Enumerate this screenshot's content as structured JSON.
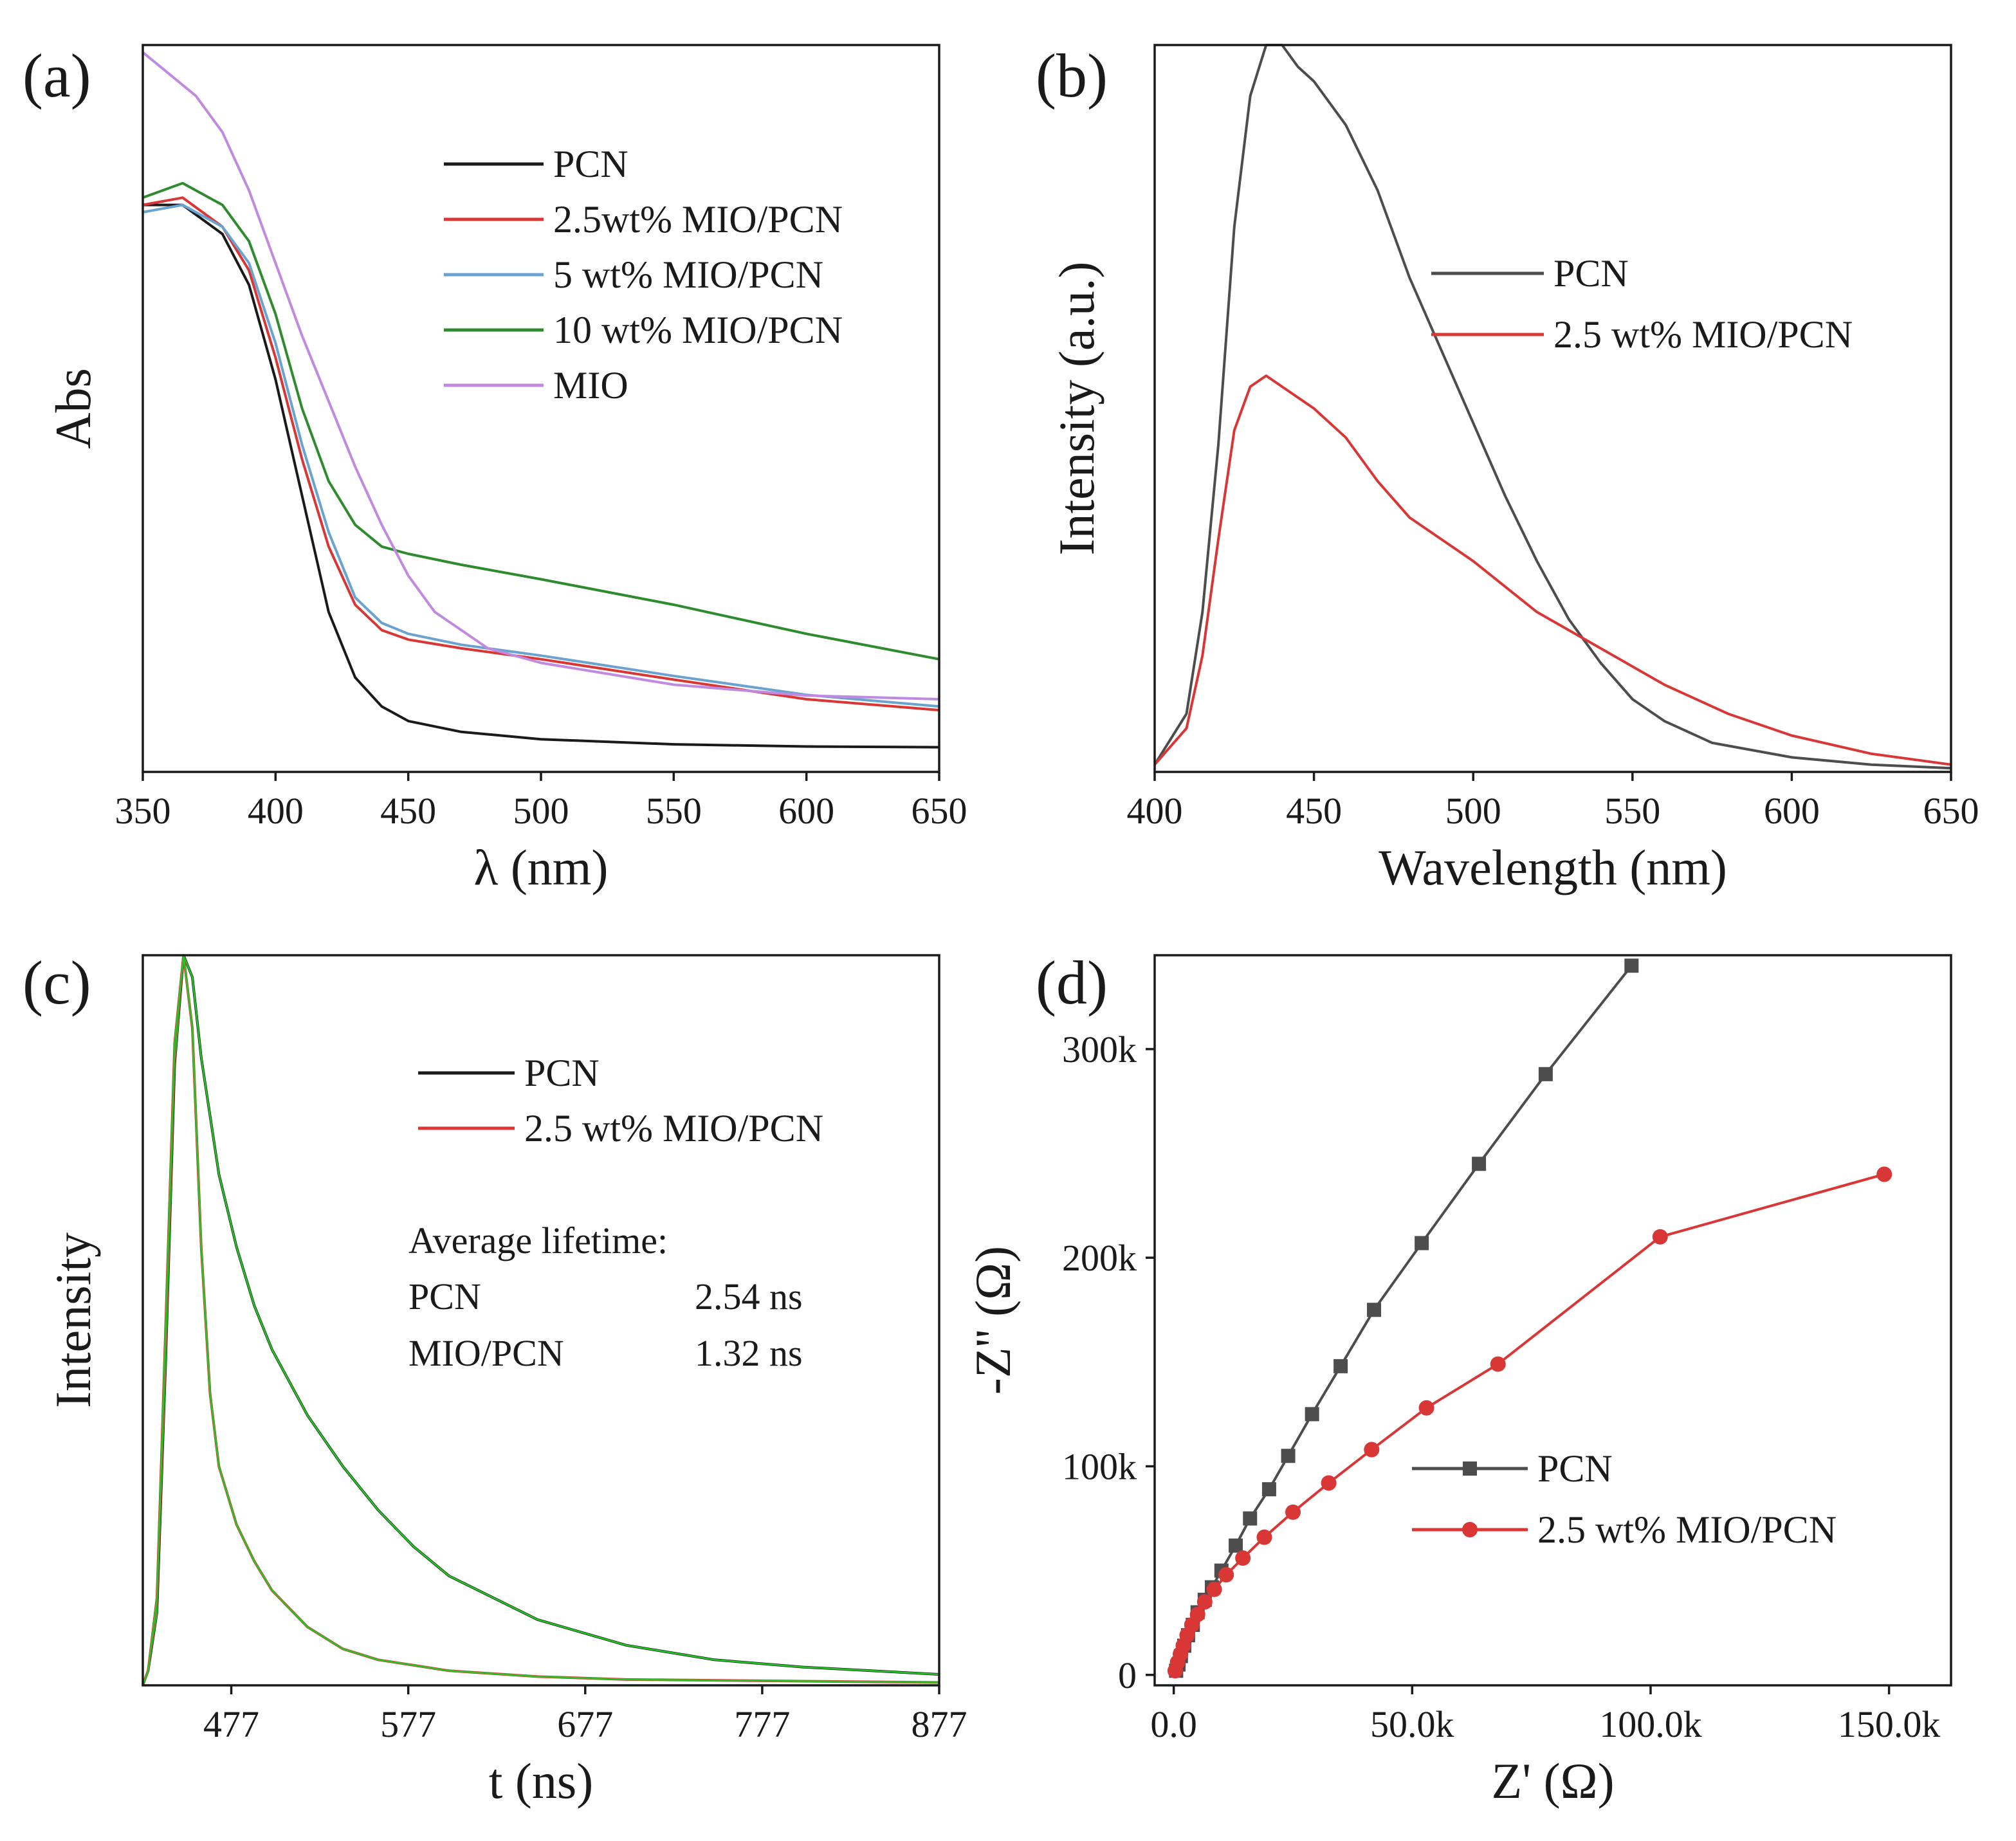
{
  "chart_data": [
    {
      "panel": "(a)",
      "type": "line",
      "xlabel": "λ (nm)",
      "ylabel": "Abs",
      "xlim": [
        350,
        650
      ],
      "ylim": [
        0,
        1.0
      ],
      "xticks": [
        350,
        400,
        450,
        500,
        550,
        600,
        650
      ],
      "legend": "top-right",
      "series": [
        {
          "name": "PCN",
          "color": "#1a1a1a",
          "x": [
            350,
            365,
            380,
            390,
            400,
            410,
            420,
            430,
            440,
            450,
            470,
            500,
            550,
            600,
            650
          ],
          "y": [
            0.78,
            0.78,
            0.74,
            0.67,
            0.54,
            0.38,
            0.22,
            0.13,
            0.09,
            0.07,
            0.055,
            0.045,
            0.038,
            0.035,
            0.034
          ]
        },
        {
          "name": "2.5wt% MIO/PCN",
          "color": "#d93636",
          "x": [
            350,
            365,
            380,
            390,
            400,
            410,
            420,
            430,
            440,
            450,
            470,
            500,
            550,
            600,
            650
          ],
          "y": [
            0.78,
            0.79,
            0.75,
            0.69,
            0.57,
            0.43,
            0.31,
            0.23,
            0.195,
            0.182,
            0.17,
            0.155,
            0.127,
            0.1,
            0.085
          ]
        },
        {
          "name": "5 wt% MIO/PCN",
          "color": "#6aa3d0",
          "x": [
            350,
            365,
            380,
            390,
            400,
            410,
            420,
            430,
            440,
            450,
            470,
            500,
            550,
            600,
            650
          ],
          "y": [
            0.77,
            0.78,
            0.75,
            0.7,
            0.59,
            0.45,
            0.33,
            0.24,
            0.205,
            0.19,
            0.175,
            0.16,
            0.132,
            0.106,
            0.09
          ]
        },
        {
          "name": "10 wt% MIO/PCN",
          "color": "#2e8b2e",
          "x": [
            350,
            365,
            380,
            390,
            400,
            410,
            420,
            430,
            440,
            450,
            470,
            500,
            550,
            600,
            650
          ],
          "y": [
            0.79,
            0.81,
            0.78,
            0.73,
            0.63,
            0.5,
            0.4,
            0.34,
            0.31,
            0.3,
            0.285,
            0.265,
            0.23,
            0.19,
            0.155
          ]
        },
        {
          "name": "MIO",
          "color": "#c08ae0",
          "x": [
            350,
            360,
            370,
            380,
            390,
            400,
            410,
            420,
            430,
            440,
            450,
            460,
            480,
            500,
            550,
            600,
            650
          ],
          "y": [
            0.99,
            0.96,
            0.93,
            0.88,
            0.8,
            0.7,
            0.6,
            0.51,
            0.42,
            0.34,
            0.27,
            0.22,
            0.17,
            0.15,
            0.12,
            0.105,
            0.1
          ]
        }
      ]
    },
    {
      "panel": "(b)",
      "type": "line",
      "xlabel": "Wavelength (nm)",
      "ylabel": "Intensity (a.u.)",
      "xlim": [
        400,
        650
      ],
      "ylim": [
        0,
        1.0
      ],
      "xticks": [
        400,
        450,
        500,
        550,
        600,
        650
      ],
      "legend": "top-right",
      "series": [
        {
          "name": "PCN",
          "color": "#4d4d4d",
          "x": [
            400,
            410,
            415,
            420,
            425,
            430,
            435,
            440,
            445,
            450,
            455,
            460,
            470,
            480,
            490,
            500,
            510,
            520,
            530,
            540,
            550,
            560,
            575,
            600,
            625,
            650
          ],
          "y": [
            0.01,
            0.08,
            0.22,
            0.45,
            0.75,
            0.93,
            1.0,
            1.0,
            0.97,
            0.95,
            0.92,
            0.89,
            0.8,
            0.68,
            0.58,
            0.48,
            0.38,
            0.29,
            0.21,
            0.15,
            0.1,
            0.07,
            0.04,
            0.02,
            0.01,
            0.005
          ]
        },
        {
          "name": "2.5 wt% MIO/PCN",
          "color": "#d93636",
          "x": [
            400,
            410,
            415,
            420,
            425,
            430,
            435,
            440,
            450,
            460,
            470,
            480,
            490,
            500,
            520,
            540,
            560,
            580,
            600,
            625,
            650
          ],
          "y": [
            0.01,
            0.06,
            0.16,
            0.32,
            0.47,
            0.53,
            0.545,
            0.53,
            0.5,
            0.46,
            0.4,
            0.35,
            0.32,
            0.29,
            0.22,
            0.17,
            0.12,
            0.08,
            0.05,
            0.025,
            0.01
          ]
        }
      ]
    },
    {
      "panel": "(c)",
      "type": "line",
      "xlabel": "t (ns)",
      "ylabel": "Intensity",
      "xlim": [
        427,
        877
      ],
      "ylim": [
        0,
        1.0
      ],
      "xticks": [
        477,
        577,
        677,
        777,
        877
      ],
      "legend": "top-right",
      "annotation": {
        "title": "Average lifetime:",
        "rows": [
          {
            "sample": "PCN",
            "value": "2.54 ns",
            "color": "#1a1a1a"
          },
          {
            "sample": "MIO/PCN",
            "value": "1.32 ns",
            "color": "#d93636"
          }
        ]
      },
      "series": [
        {
          "name": "PCN",
          "color": "#1a1a1a",
          "x": [
            427,
            430,
            435,
            440,
            445,
            450,
            455,
            460,
            470,
            480,
            490,
            500,
            520,
            540,
            560,
            580,
            600,
            650,
            700,
            750,
            800,
            877
          ],
          "y": [
            0.0,
            0.02,
            0.1,
            0.45,
            0.85,
            1.0,
            0.97,
            0.86,
            0.7,
            0.6,
            0.52,
            0.46,
            0.37,
            0.3,
            0.24,
            0.19,
            0.15,
            0.09,
            0.055,
            0.035,
            0.025,
            0.015
          ]
        },
        {
          "name": "2.5 wt% MIO/PCN",
          "color": "#d93636",
          "x": [
            427,
            430,
            435,
            440,
            445,
            450,
            455,
            460,
            465,
            470,
            480,
            490,
            500,
            520,
            540,
            560,
            600,
            650,
            700,
            877
          ],
          "y": [
            0.0,
            0.02,
            0.12,
            0.5,
            0.88,
            1.0,
            0.9,
            0.6,
            0.4,
            0.3,
            0.22,
            0.17,
            0.13,
            0.08,
            0.05,
            0.035,
            0.02,
            0.012,
            0.008,
            0.004
          ]
        }
      ]
    },
    {
      "panel": "(d)",
      "type": "scatter",
      "xlabel": "Z' (Ω)",
      "ylabel": "-Z'' (Ω)",
      "xlim": [
        -4000,
        163000
      ],
      "ylim": [
        -5000,
        345000
      ],
      "xticks": [
        0,
        50000,
        100000,
        150000
      ],
      "xtick_labels": [
        "0.0",
        "50.0k",
        "100.0k",
        "150.0k"
      ],
      "yticks": [
        0,
        100000,
        200000,
        300000
      ],
      "ytick_labels": [
        "0",
        "100k",
        "200k",
        "300k"
      ],
      "legend": "bottom-center",
      "series": [
        {
          "name": "PCN",
          "color": "#4d4d4d",
          "marker": "square",
          "x": [
            500,
            1000,
            1500,
            2200,
            3000,
            4000,
            5000,
            6500,
            8000,
            10000,
            13000,
            16000,
            20000,
            24000,
            29000,
            35000,
            42000,
            52000,
            64000,
            78000,
            96000
          ],
          "y": [
            2000,
            5000,
            9000,
            14000,
            19000,
            24000,
            30000,
            36000,
            42000,
            50000,
            62000,
            75000,
            89000,
            105000,
            125000,
            148000,
            175000,
            207000,
            245000,
            288000,
            340000
          ]
        },
        {
          "name": "2.5 wt% MIO/PCN",
          "color": "#d93636",
          "marker": "circle",
          "x": [
            300,
            800,
            1400,
            2000,
            2800,
            3800,
            5000,
            6500,
            8500,
            11000,
            14500,
            19000,
            25000,
            32500,
            41500,
            53000,
            68000,
            102000,
            149000
          ],
          "y": [
            2000,
            6000,
            10000,
            14000,
            19000,
            24000,
            29000,
            35000,
            41000,
            48000,
            56000,
            66000,
            78000,
            92000,
            108000,
            128000,
            149000,
            210000,
            240000
          ]
        }
      ]
    }
  ]
}
